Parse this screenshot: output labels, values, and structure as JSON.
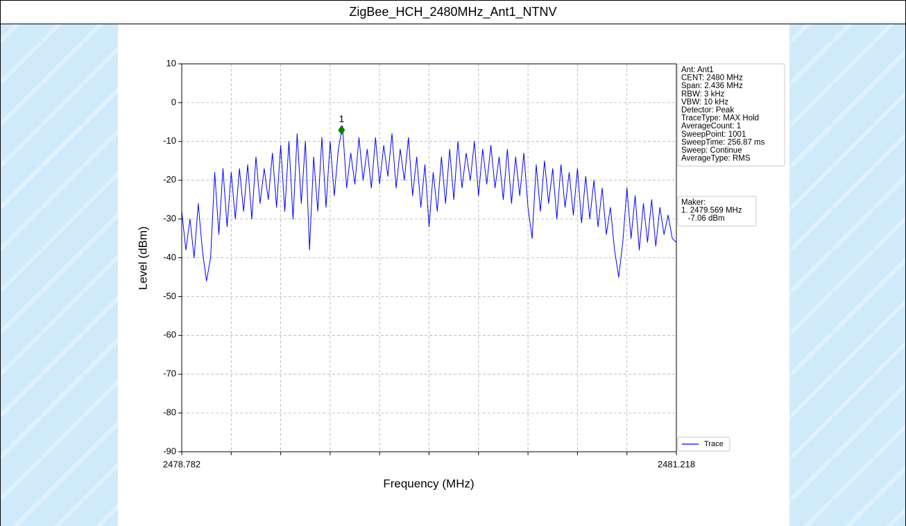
{
  "chart_data": {
    "type": "line",
    "title": "ZigBee_HCH_2480MHz_Ant1_NTNV",
    "x_label": "Frequency (MHz)",
    "y_label": "Level (dBm)",
    "xlim": [
      2478.782,
      2481.218
    ],
    "xticks": [
      2478.782,
      2481.218
    ],
    "x_divisions": 10,
    "ylim": [
      -90,
      10
    ],
    "yticks": [
      -90,
      -80,
      -70,
      -60,
      -50,
      -40,
      -30,
      -20,
      -10,
      0,
      10
    ],
    "grid": true,
    "x": [
      2478.782,
      2478.8023,
      2478.8226,
      2478.8429,
      2478.8632,
      2478.8835,
      2478.9038,
      2478.9241,
      2478.9444,
      2478.9647,
      2478.985,
      2479.0053,
      2479.0256,
      2479.0459,
      2479.0662,
      2479.0865,
      2479.1068,
      2479.1271,
      2479.1474,
      2479.1677,
      2479.188,
      2479.2083,
      2479.2286,
      2479.2489,
      2479.2692,
      2479.2895,
      2479.3098,
      2479.3301,
      2479.3504,
      2479.3707,
      2479.391,
      2479.4113,
      2479.4316,
      2479.4519,
      2479.4722,
      2479.4925,
      2479.5128,
      2479.5331,
      2479.5534,
      2479.5737,
      2479.594,
      2479.6143,
      2479.6346,
      2479.6549,
      2479.6752,
      2479.6955,
      2479.7158,
      2479.7361,
      2479.7564,
      2479.7767,
      2479.797,
      2479.8173,
      2479.8376,
      2479.8579,
      2479.8782,
      2479.8985,
      2479.9188,
      2479.9391,
      2479.9594,
      2479.9797,
      2480.0,
      2480.0203,
      2480.0406,
      2480.0609,
      2480.0812,
      2480.1015,
      2480.1218,
      2480.1421,
      2480.1624,
      2480.1827,
      2480.203,
      2480.2233,
      2480.2436,
      2480.2639,
      2480.2842,
      2480.3045,
      2480.3248,
      2480.3451,
      2480.3654,
      2480.3857,
      2480.406,
      2480.4263,
      2480.4466,
      2480.4669,
      2480.4872,
      2480.5075,
      2480.5278,
      2480.5481,
      2480.5684,
      2480.5887,
      2480.609,
      2480.6293,
      2480.6496,
      2480.6699,
      2480.6902,
      2480.7105,
      2480.7308,
      2480.7511,
      2480.7714,
      2480.7917,
      2480.812,
      2480.8323,
      2480.8526,
      2480.8729,
      2480.8932,
      2480.9135,
      2480.9338,
      2480.9541,
      2480.9744,
      2480.9947,
      2481.015,
      2481.0353,
      2481.0556,
      2481.0759,
      2481.0962,
      2481.1165,
      2481.1368,
      2481.1571,
      2481.1774,
      2481.1977,
      2481.218
    ],
    "series": [
      {
        "name": "Trace",
        "color": "#0000ff",
        "values": [
          -28,
          -38,
          -30,
          -40,
          -26,
          -38,
          -46,
          -40,
          -18,
          -34,
          -17,
          -32,
          -18,
          -30,
          -17,
          -28,
          -16,
          -30,
          -14,
          -26,
          -17,
          -25,
          -13,
          -27,
          -11,
          -28,
          -10,
          -30,
          -8,
          -26,
          -10,
          -38,
          -14,
          -28,
          -9,
          -27,
          -10,
          -24,
          -12,
          -6,
          -22,
          -13,
          -21,
          -9,
          -20,
          -12,
          -22,
          -9,
          -21,
          -11,
          -19,
          -8,
          -22,
          -12,
          -20,
          -9,
          -24,
          -14,
          -27,
          -16,
          -32,
          -18,
          -28,
          -14,
          -26,
          -12,
          -25,
          -10,
          -22,
          -13,
          -20,
          -10,
          -24,
          -12,
          -21,
          -11,
          -22,
          -14,
          -25,
          -12,
          -26,
          -14,
          -24,
          -13,
          -27,
          -35,
          -16,
          -28,
          -15,
          -26,
          -17,
          -30,
          -16,
          -27,
          -18,
          -29,
          -17,
          -31,
          -19,
          -30,
          -20,
          -32,
          -22,
          -34,
          -27,
          -38,
          -45,
          -36,
          -22,
          -35,
          -24,
          -38,
          -26,
          -36,
          -25,
          -37,
          -27,
          -34,
          -29,
          -35,
          -36
        ]
      }
    ],
    "marker": {
      "label": "1",
      "x": 2479.569,
      "y": -7.06,
      "color": "#008000"
    },
    "info_lines": [
      "Ant: Ant1",
      "CENT: 2480 MHz",
      "Span: 2.436 MHz",
      "RBW: 3 kHz",
      "VBW: 10 kHz",
      "Detector: Peak",
      "TraceType: MAX Hold",
      "AverageCount: 1",
      "SweepPoint: 1001",
      "SweepTime: 256.87 ms",
      "Sweep: Continue",
      "AverageType: RMS"
    ],
    "maker_lines": [
      "Maker:",
      "1. 2479.569 MHz",
      "   -7.06 dBm"
    ],
    "legend_position": "lower right"
  }
}
